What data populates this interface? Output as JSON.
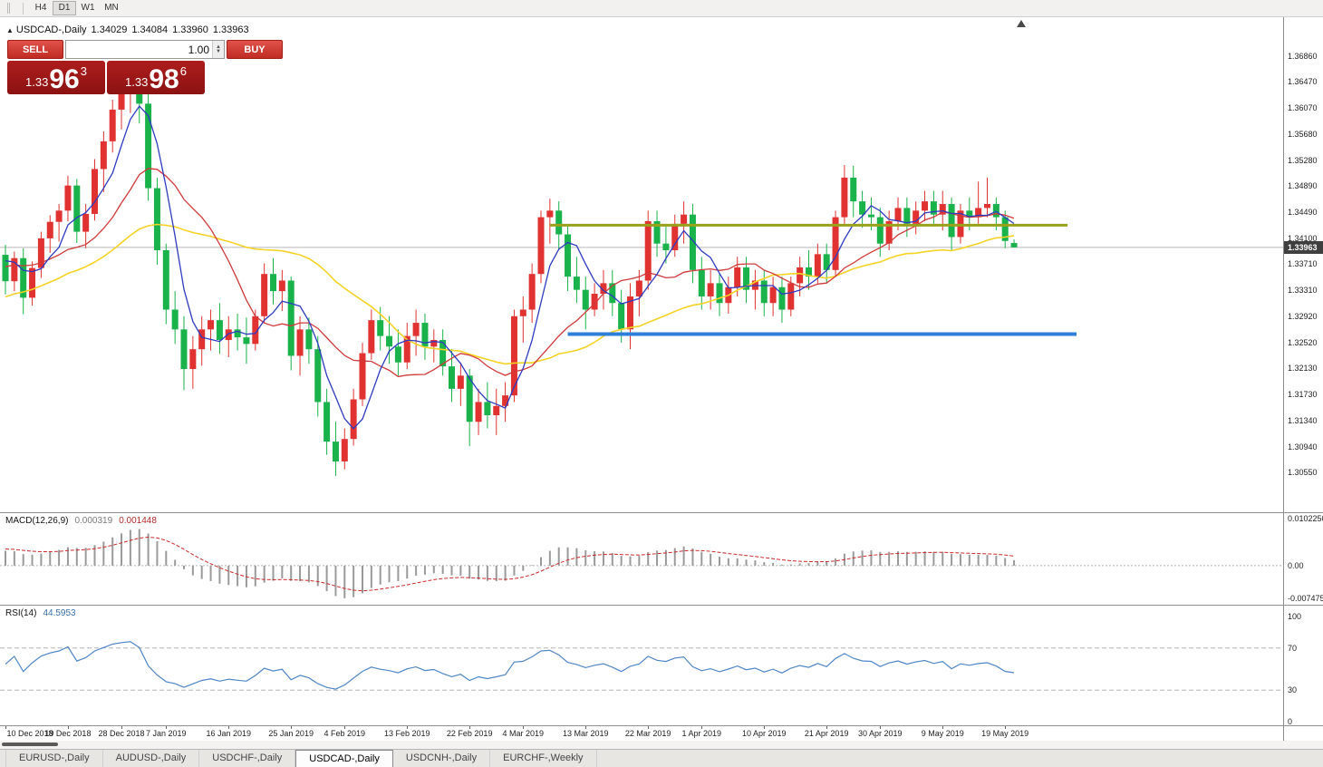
{
  "toolbar": {
    "periods": [
      "H4",
      "D1",
      "W1",
      "MN"
    ],
    "active_period": "D1"
  },
  "chart": {
    "header": {
      "collapse_icon": "▲",
      "title": "USDCAD-,Daily",
      "open": "1.34029",
      "high": "1.34084",
      "low": "1.33960",
      "close": "1.33963"
    },
    "one_click": {
      "sell_label": "SELL",
      "buy_label": "BUY",
      "volume": "1.00",
      "sell_price": {
        "prefix": "1.33",
        "big": "96",
        "sup": "3"
      },
      "buy_price": {
        "prefix": "1.33",
        "big": "98",
        "sup": "6"
      }
    },
    "price_axis": {
      "labels": [
        "1.36860",
        "1.36470",
        "1.36070",
        "1.35680",
        "1.35280",
        "1.34890",
        "1.34490",
        "1.34100",
        "1.33710",
        "1.33310",
        "1.32920",
        "1.32520",
        "1.32130",
        "1.31730",
        "1.31340",
        "1.30940",
        "1.30550"
      ],
      "current_price_tag": "1.33963"
    }
  },
  "macd": {
    "label": "MACD(12,26,9)",
    "value_main": "0.000319",
    "value_signal": "0.001448",
    "axis_labels": [
      {
        "text": "0.0102250",
        "value": 0.010225
      },
      {
        "text": "0.00",
        "value": 0
      },
      {
        "text": "-0.0074750",
        "value": -0.007475
      }
    ],
    "scale": {
      "min": -0.007475,
      "max": 0.010225
    },
    "params": {
      "fast": 12,
      "slow": 26,
      "signal": 9
    }
  },
  "rsi": {
    "label": "RSI(14)",
    "value": "44.5953",
    "period": 14,
    "axis_labels": [
      {
        "text": "100",
        "value": 100
      },
      {
        "text": "70",
        "value": 70
      },
      {
        "text": "30",
        "value": 30
      },
      {
        "text": "0",
        "value": 0
      }
    ],
    "levels": [
      70,
      30
    ]
  },
  "tabs": [
    {
      "label": "EURUSD-,Daily",
      "active": false
    },
    {
      "label": "AUDUSD-,Daily",
      "active": false
    },
    {
      "label": "USDCHF-,Daily",
      "active": false
    },
    {
      "label": "USDCAD-,Daily",
      "active": true
    },
    {
      "label": "USDCNH-,Daily",
      "active": false
    },
    {
      "label": "EURCHF-,Weekly",
      "active": false
    }
  ],
  "chart_data": {
    "type": "candlestick",
    "symbol": "USDCAD",
    "timeframe": "Daily",
    "current_price": 1.33963,
    "scale": {
      "min": 1.2995,
      "max": 1.3745
    },
    "colors": {
      "up": "#e03231",
      "down": "#19b24b",
      "ma_fast": "#2e3bc0",
      "ma_mid": "#d03a3a",
      "ma_slow": "#f5d327",
      "macd_bars": "#9a9a9a",
      "macd_signal": "#cc2929",
      "rsi_line": "#4f86c6",
      "resistance_line": "#9aa11b",
      "support_line": "#2e7fd9",
      "price_tag_bg": "#3f3f3f",
      "current_price_line": "#b8b8b8"
    },
    "overlays": {
      "ma_fast_period": 5,
      "ma_mid_period": 13,
      "ma_slow_period": 30
    },
    "hlines": [
      {
        "name": "resistance-line",
        "price": 1.343,
        "from_index": 61,
        "to_index": 119,
        "color": "#9aa11b",
        "width": 3
      },
      {
        "name": "support-line",
        "price": 1.3265,
        "from_index": 63,
        "to_index": 120,
        "color": "#2e7fd9",
        "width": 4
      }
    ],
    "x_axis_labels": [
      {
        "index": 0,
        "label": "10 Dec 2018"
      },
      {
        "index": 7,
        "label": "19 Dec 2018"
      },
      {
        "index": 13,
        "label": "28 Dec 2018"
      },
      {
        "index": 18,
        "label": "7 Jan 2019"
      },
      {
        "index": 25,
        "label": "16 Jan 2019"
      },
      {
        "index": 32,
        "label": "25 Jan 2019"
      },
      {
        "index": 38,
        "label": "4 Feb 2019"
      },
      {
        "index": 45,
        "label": "13 Feb 2019"
      },
      {
        "index": 52,
        "label": "22 Feb 2019"
      },
      {
        "index": 58,
        "label": "4 Mar 2019"
      },
      {
        "index": 65,
        "label": "13 Mar 2019"
      },
      {
        "index": 72,
        "label": "22 Mar 2019"
      },
      {
        "index": 78,
        "label": "1 Apr 2019"
      },
      {
        "index": 85,
        "label": "10 Apr 2019"
      },
      {
        "index": 92,
        "label": "21 Apr 2019"
      },
      {
        "index": 98,
        "label": "30 Apr 2019"
      },
      {
        "index": 105,
        "label": "9 May 2019"
      },
      {
        "index": 112,
        "label": "19 May 2019"
      }
    ],
    "warmup_closes_for_indicators": [
      1.3188,
      1.3175,
      1.3162,
      1.317,
      1.3182,
      1.3195,
      1.3186,
      1.3205,
      1.3218,
      1.321,
      1.3228,
      1.3242,
      1.3235,
      1.3252,
      1.3246,
      1.3262,
      1.3278,
      1.327,
      1.3288,
      1.3282,
      1.3298,
      1.3312,
      1.3305,
      1.3295,
      1.3312,
      1.3326,
      1.3338,
      1.333,
      1.3345,
      1.3335,
      1.3352,
      1.3365,
      1.3358,
      1.3372,
      1.3385,
      1.3378,
      1.339,
      1.3382,
      1.3375,
      1.3388
    ],
    "candles": [
      [
        1.3385,
        1.34,
        1.3325,
        1.3345
      ],
      [
        1.3345,
        1.339,
        1.333,
        1.338
      ],
      [
        1.338,
        1.3395,
        1.3295,
        1.332
      ],
      [
        1.332,
        1.3375,
        1.3308,
        1.3365
      ],
      [
        1.3365,
        1.342,
        1.335,
        1.341
      ],
      [
        1.341,
        1.3445,
        1.3388,
        1.3435
      ],
      [
        1.3435,
        1.3462,
        1.3405,
        1.3452
      ],
      [
        1.3452,
        1.3505,
        1.3436,
        1.349
      ],
      [
        1.349,
        1.35,
        1.3403,
        1.342
      ],
      [
        1.342,
        1.3462,
        1.3395,
        1.3447
      ],
      [
        1.3447,
        1.353,
        1.3437,
        1.3515
      ],
      [
        1.3515,
        1.3572,
        1.348,
        1.3557
      ],
      [
        1.3557,
        1.362,
        1.354,
        1.3605
      ],
      [
        1.3605,
        1.3645,
        1.3575,
        1.363
      ],
      [
        1.363,
        1.3662,
        1.36,
        1.3645
      ],
      [
        1.3645,
        1.3664,
        1.3584,
        1.3614
      ],
      [
        1.3614,
        1.3637,
        1.3467,
        1.3486
      ],
      [
        1.3486,
        1.3502,
        1.337,
        1.3392
      ],
      [
        1.3392,
        1.3402,
        1.328,
        1.3302
      ],
      [
        1.3302,
        1.333,
        1.325,
        1.3272
      ],
      [
        1.3272,
        1.3292,
        1.318,
        1.3212
      ],
      [
        1.3212,
        1.3262,
        1.3182,
        1.3242
      ],
      [
        1.3242,
        1.3292,
        1.3217,
        1.3272
      ],
      [
        1.3272,
        1.3302,
        1.324,
        1.3286
      ],
      [
        1.3286,
        1.3312,
        1.3235,
        1.3256
      ],
      [
        1.3256,
        1.3292,
        1.323,
        1.3272
      ],
      [
        1.3272,
        1.3296,
        1.324,
        1.326
      ],
      [
        1.326,
        1.329,
        1.322,
        1.325
      ],
      [
        1.325,
        1.3302,
        1.324,
        1.3292
      ],
      [
        1.3292,
        1.3372,
        1.3282,
        1.3356
      ],
      [
        1.3356,
        1.338,
        1.331,
        1.333
      ],
      [
        1.333,
        1.3362,
        1.33,
        1.3346
      ],
      [
        1.3346,
        1.3352,
        1.321,
        1.3232
      ],
      [
        1.3232,
        1.3292,
        1.3202,
        1.3272
      ],
      [
        1.3272,
        1.329,
        1.322,
        1.3242
      ],
      [
        1.3242,
        1.3262,
        1.314,
        1.3162
      ],
      [
        1.3162,
        1.3182,
        1.3082,
        1.3102
      ],
      [
        1.3102,
        1.3132,
        1.305,
        1.3072
      ],
      [
        1.3072,
        1.3122,
        1.306,
        1.3106
      ],
      [
        1.3106,
        1.3182,
        1.3096,
        1.3166
      ],
      [
        1.3166,
        1.3252,
        1.3156,
        1.3236
      ],
      [
        1.3236,
        1.3302,
        1.3226,
        1.3286
      ],
      [
        1.3286,
        1.3306,
        1.324,
        1.3262
      ],
      [
        1.3262,
        1.3292,
        1.322,
        1.3246
      ],
      [
        1.3246,
        1.3272,
        1.3202,
        1.3222
      ],
      [
        1.3222,
        1.3282,
        1.3212,
        1.3262
      ],
      [
        1.3262,
        1.3302,
        1.3232,
        1.3282
      ],
      [
        1.3282,
        1.3296,
        1.3226,
        1.3246
      ],
      [
        1.3246,
        1.3272,
        1.3222,
        1.3256
      ],
      [
        1.3256,
        1.3272,
        1.3202,
        1.3216
      ],
      [
        1.3216,
        1.3242,
        1.3162,
        1.3182
      ],
      [
        1.3182,
        1.3222,
        1.3156,
        1.3202
      ],
      [
        1.3202,
        1.3212,
        1.3095,
        1.3132
      ],
      [
        1.3132,
        1.3182,
        1.3112,
        1.3162
      ],
      [
        1.3162,
        1.3192,
        1.3122,
        1.3142
      ],
      [
        1.3142,
        1.3182,
        1.3112,
        1.3156
      ],
      [
        1.3156,
        1.3192,
        1.3132,
        1.3172
      ],
      [
        1.3172,
        1.3302,
        1.3162,
        1.3292
      ],
      [
        1.3292,
        1.3322,
        1.3252,
        1.3302
      ],
      [
        1.3302,
        1.3372,
        1.3282,
        1.3356
      ],
      [
        1.3356,
        1.3452,
        1.3342,
        1.3442
      ],
      [
        1.3442,
        1.347,
        1.3402,
        1.3452
      ],
      [
        1.3452,
        1.3466,
        1.3392,
        1.3416
      ],
      [
        1.3416,
        1.3432,
        1.333,
        1.3352
      ],
      [
        1.3352,
        1.3382,
        1.3312,
        1.3332
      ],
      [
        1.3332,
        1.3352,
        1.3272,
        1.3302
      ],
      [
        1.3302,
        1.3342,
        1.3292,
        1.3326
      ],
      [
        1.3326,
        1.3362,
        1.3302,
        1.3342
      ],
      [
        1.3342,
        1.3362,
        1.3292,
        1.3312
      ],
      [
        1.3312,
        1.3332,
        1.3252,
        1.3272
      ],
      [
        1.3272,
        1.3342,
        1.3242,
        1.3322
      ],
      [
        1.3322,
        1.3362,
        1.3292,
        1.3346
      ],
      [
        1.3346,
        1.3452,
        1.3332,
        1.3436
      ],
      [
        1.3436,
        1.3452,
        1.3382,
        1.3402
      ],
      [
        1.3402,
        1.3432,
        1.3372,
        1.3392
      ],
      [
        1.3392,
        1.3446,
        1.3382,
        1.3432
      ],
      [
        1.3432,
        1.3466,
        1.3402,
        1.3446
      ],
      [
        1.3446,
        1.3462,
        1.3342,
        1.3362
      ],
      [
        1.3362,
        1.3382,
        1.3302,
        1.3322
      ],
      [
        1.3322,
        1.3362,
        1.3302,
        1.3342
      ],
      [
        1.3342,
        1.3356,
        1.3292,
        1.3312
      ],
      [
        1.3312,
        1.3352,
        1.3296,
        1.3336
      ],
      [
        1.3336,
        1.3382,
        1.3322,
        1.3366
      ],
      [
        1.3366,
        1.3382,
        1.3312,
        1.3332
      ],
      [
        1.3332,
        1.3362,
        1.3302,
        1.3346
      ],
      [
        1.3346,
        1.3362,
        1.3292,
        1.3312
      ],
      [
        1.3312,
        1.3352,
        1.3292,
        1.3336
      ],
      [
        1.3336,
        1.3352,
        1.3282,
        1.3302
      ],
      [
        1.3302,
        1.3352,
        1.3292,
        1.3342
      ],
      [
        1.3342,
        1.3382,
        1.3322,
        1.3366
      ],
      [
        1.3366,
        1.3392,
        1.3332,
        1.3352
      ],
      [
        1.3352,
        1.3402,
        1.3342,
        1.3386
      ],
      [
        1.3386,
        1.3402,
        1.3342,
        1.3362
      ],
      [
        1.3362,
        1.3452,
        1.3352,
        1.3442
      ],
      [
        1.3442,
        1.3521,
        1.3432,
        1.3502
      ],
      [
        1.3502,
        1.352,
        1.3442,
        1.3466
      ],
      [
        1.3466,
        1.3482,
        1.3426,
        1.3446
      ],
      [
        1.3446,
        1.3472,
        1.3422,
        1.3442
      ],
      [
        1.3442,
        1.3456,
        1.3382,
        1.3402
      ],
      [
        1.3402,
        1.3452,
        1.3392,
        1.3436
      ],
      [
        1.3436,
        1.3472,
        1.3422,
        1.3456
      ],
      [
        1.3456,
        1.3472,
        1.3412,
        1.3432
      ],
      [
        1.3432,
        1.3466,
        1.3416,
        1.3452
      ],
      [
        1.3452,
        1.3482,
        1.3436,
        1.3466
      ],
      [
        1.3466,
        1.3482,
        1.3432,
        1.3446
      ],
      [
        1.3446,
        1.3482,
        1.3422,
        1.3462
      ],
      [
        1.3462,
        1.3472,
        1.3392,
        1.3412
      ],
      [
        1.3412,
        1.3462,
        1.3402,
        1.3452
      ],
      [
        1.3452,
        1.3472,
        1.3422,
        1.3442
      ],
      [
        1.3442,
        1.3496,
        1.3432,
        1.3456
      ],
      [
        1.3456,
        1.3502,
        1.3442,
        1.3462
      ],
      [
        1.3462,
        1.3472,
        1.3422,
        1.3442
      ],
      [
        1.3442,
        1.3452,
        1.3395,
        1.3406
      ],
      [
        1.34029,
        1.34084,
        1.3396,
        1.33963
      ]
    ]
  }
}
